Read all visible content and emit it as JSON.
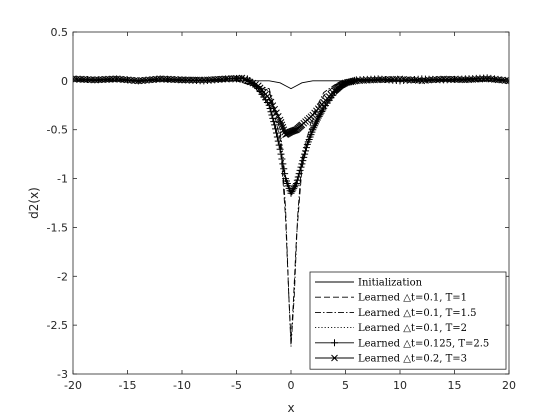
{
  "chart_data": {
    "type": "line",
    "title": "",
    "xlabel": "x",
    "ylabel": "d2(x)",
    "xlim": [
      -20,
      20
    ],
    "ylim": [
      -3,
      0.5
    ],
    "grid": false,
    "legend_position": "bottom-right",
    "x_ticks": [
      "-20",
      "-15",
      "-10",
      "-5",
      "0",
      "5",
      "10",
      "15",
      "20"
    ],
    "y_ticks": [
      "0.5",
      "0",
      "-0.5",
      "-1",
      "-1.5",
      "-2",
      "-2.5",
      "-3"
    ],
    "series": [
      {
        "name": "Initialization",
        "style": "solid",
        "marker": "none",
        "x": [
          -20,
          -15,
          -10,
          -5,
          -2,
          -1,
          -0.5,
          0,
          0.5,
          1,
          2,
          5,
          10,
          15,
          20
        ],
        "y": [
          0,
          0,
          0,
          0,
          0,
          -0.02,
          -0.05,
          -0.08,
          -0.05,
          -0.02,
          0,
          0,
          0,
          0,
          0
        ]
      },
      {
        "name": "Learned △t=0.1, T=1",
        "style": "dashed",
        "marker": "none",
        "x": [
          -20,
          -5,
          -2,
          -1,
          -0.5,
          -0.2,
          0,
          0.2,
          0.5,
          1,
          2,
          3,
          4,
          5,
          10,
          20
        ],
        "y": [
          0,
          0,
          -0.1,
          -0.6,
          -1.4,
          -2.2,
          -2.65,
          -2.3,
          -1.6,
          -0.9,
          -0.4,
          -0.15,
          -0.05,
          0,
          0,
          0
        ]
      },
      {
        "name": "Learned △t=0.1, T=1.5",
        "style": "dashdot",
        "marker": "none",
        "x": [
          -20,
          -5,
          -2,
          -1,
          -0.5,
          -0.2,
          0,
          0.3,
          0.6,
          1,
          2,
          3,
          4,
          5,
          10,
          20
        ],
        "y": [
          0,
          0,
          -0.08,
          -0.5,
          -1.3,
          -2.2,
          -2.72,
          -2.2,
          -1.4,
          -0.8,
          -0.35,
          -0.12,
          -0.04,
          0,
          0,
          0
        ]
      },
      {
        "name": "Learned △t=0.1, T=2",
        "style": "dotted",
        "marker": "none",
        "x": [
          -20,
          -5,
          -2,
          -1,
          -0.5,
          0,
          0.5,
          1,
          2,
          3,
          4,
          5,
          10,
          20
        ],
        "y": [
          0,
          0,
          -0.1,
          -0.5,
          -1.0,
          -1.15,
          -1.0,
          -0.8,
          -0.5,
          -0.25,
          -0.08,
          0,
          0,
          0
        ]
      },
      {
        "name": "Learned △t=0.125, T=2.5",
        "style": "solid",
        "marker": "plus",
        "x": [
          -20,
          -18,
          -16,
          -14,
          -12,
          -10,
          -8,
          -6,
          -4,
          -3,
          -2,
          -1.5,
          -1,
          -0.5,
          0,
          0.5,
          1,
          1.5,
          2,
          2.5,
          3,
          4,
          5,
          6,
          8,
          10,
          12,
          14,
          16,
          18,
          20
        ],
        "y": [
          0.02,
          0.01,
          0.02,
          0.0,
          0.02,
          0.01,
          0.0,
          0.02,
          0.02,
          -0.08,
          -0.25,
          -0.45,
          -0.7,
          -1.0,
          -1.15,
          -1.05,
          -0.85,
          -0.65,
          -0.5,
          -0.38,
          -0.28,
          -0.12,
          -0.02,
          0.01,
          0.02,
          0.0,
          0.02,
          0.01,
          0.02,
          0.03,
          0.0
        ]
      },
      {
        "name": "Learned △t=0.2, T=3",
        "style": "solid",
        "marker": "x",
        "x": [
          -20,
          -18,
          -16,
          -14,
          -12,
          -10,
          -8,
          -6,
          -4.5,
          -3,
          -2,
          -1,
          -0.5,
          0,
          0.5,
          1,
          2,
          3,
          4,
          4.5,
          5,
          6,
          8,
          10,
          12,
          14,
          16,
          18,
          20
        ],
        "y": [
          0.02,
          0.01,
          0.02,
          0.0,
          0.02,
          0.01,
          0.01,
          0.02,
          0.03,
          -0.05,
          -0.18,
          -0.4,
          -0.55,
          -0.52,
          -0.5,
          -0.45,
          -0.35,
          -0.22,
          -0.1,
          -0.05,
          -0.02,
          0.0,
          0.01,
          0.02,
          0.0,
          0.02,
          0.01,
          0.02,
          0.0
        ]
      }
    ]
  }
}
